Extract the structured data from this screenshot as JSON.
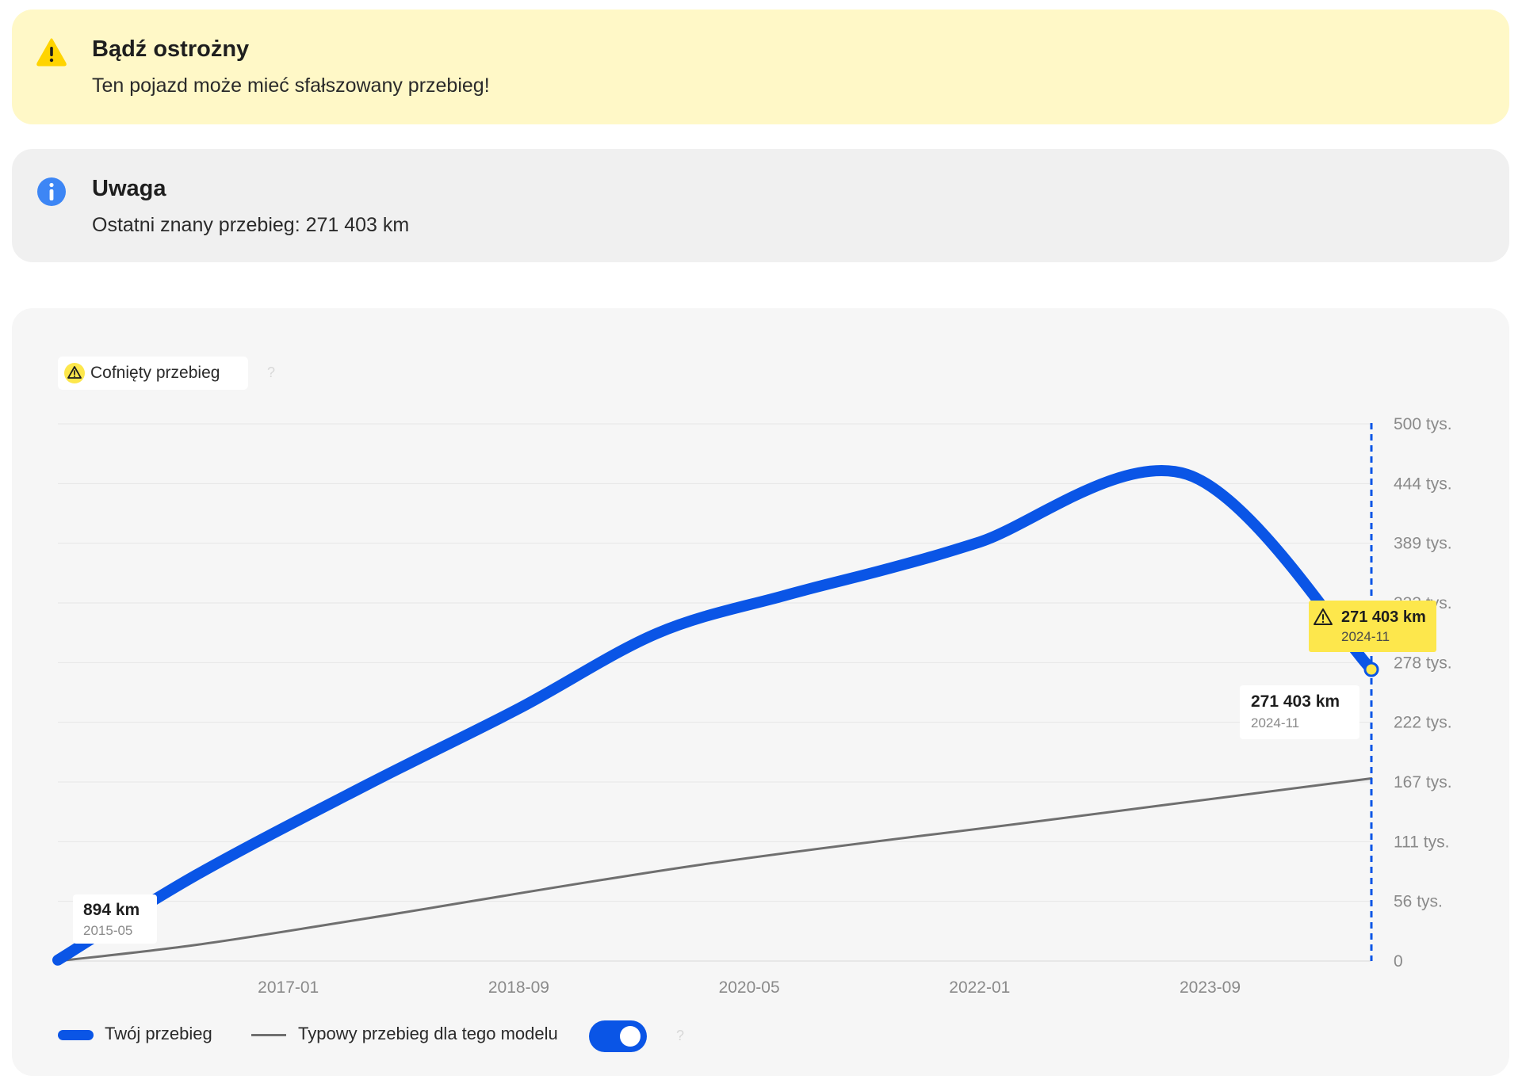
{
  "warning": {
    "title": "Bądź ostrożny",
    "text": "Ten pojazd może mieć sfałszowany przebieg!",
    "icon": "warning-triangle-icon",
    "color": "#fff8c7",
    "icon_color": "#ffd400"
  },
  "info": {
    "title": "Uwaga",
    "text": "Ostatni znany przebieg: 271 403 km",
    "icon": "info-circle-icon",
    "color": "#f0f0f0",
    "icon_color": "#3d86f5"
  },
  "rollback_badge": {
    "label": "Cofnięty przebieg",
    "help": "?"
  },
  "legend": {
    "yours": "Twój przebieg",
    "typical": "Typowy przebieg dla tego modelu",
    "help": "?",
    "toggle_on": true
  },
  "chart_data": {
    "type": "line",
    "title": "",
    "xlabel": "",
    "ylabel": "",
    "x_range": [
      "2015-05",
      "2024-11"
    ],
    "y_range": [
      0,
      500000
    ],
    "y_ticks": [
      {
        "value": 0,
        "label": "0"
      },
      {
        "value": 55556,
        "label": "56 tys."
      },
      {
        "value": 111111,
        "label": "111 tys."
      },
      {
        "value": 166667,
        "label": "167 tys."
      },
      {
        "value": 222222,
        "label": "222 tys."
      },
      {
        "value": 277778,
        "label": "278 tys."
      },
      {
        "value": 333333,
        "label": "333 tys."
      },
      {
        "value": 388889,
        "label": "389 tys."
      },
      {
        "value": 444444,
        "label": "444 tys."
      },
      {
        "value": 500000,
        "label": "500 tys."
      }
    ],
    "x_ticks": [
      "2017-01",
      "2018-09",
      "2020-05",
      "2022-01",
      "2023-09"
    ],
    "grid": true,
    "legend_position": "bottom-left",
    "series": [
      {
        "name": "Twój przebieg",
        "color": "#0a55e6",
        "points": [
          {
            "x": "2015-05",
            "y": 894
          },
          {
            "x": "2016-05",
            "y": 80000
          },
          {
            "x": "2017-08",
            "y": 165000
          },
          {
            "x": "2018-09",
            "y": 235000
          },
          {
            "x": "2019-09",
            "y": 305000
          },
          {
            "x": "2020-08",
            "y": 340000
          },
          {
            "x": "2021-05",
            "y": 365000
          },
          {
            "x": "2022-01",
            "y": 390000
          },
          {
            "x": "2023-07",
            "y": 453000
          },
          {
            "x": "2024-11",
            "y": 271403
          }
        ]
      },
      {
        "name": "Typowy przebieg dla tego modelu",
        "color": "#6f6f6f",
        "points": [
          {
            "x": "2015-05",
            "y": 0
          },
          {
            "x": "2016-05",
            "y": 15000
          },
          {
            "x": "2017-08",
            "y": 40000
          },
          {
            "x": "2020-01",
            "y": 90000
          },
          {
            "x": "2022-06",
            "y": 130000
          },
          {
            "x": "2024-11",
            "y": 170000
          }
        ]
      }
    ],
    "annotations": [
      {
        "type": "start",
        "value": "894 km",
        "date": "2015-05"
      },
      {
        "type": "end",
        "value": "271 403 km",
        "date": "2024-11"
      },
      {
        "type": "rollback",
        "value": "271 403 km",
        "date": "2024-11",
        "color": "#fde74c"
      }
    ],
    "current_marker": "2024-11"
  }
}
